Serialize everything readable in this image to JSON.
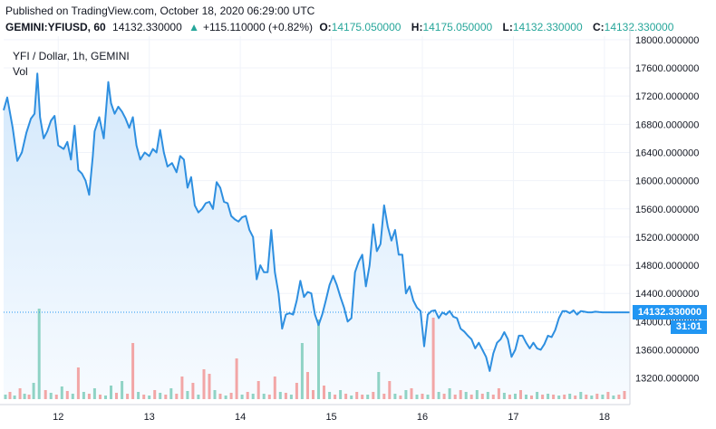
{
  "published": "Published on TradingView.com, October 18, 2020 06:29:00 UTC",
  "header": {
    "symbol": "GEMINI:YFIUSD, 60",
    "last": "14132.330000",
    "up_arrow": "▲",
    "change": "+115.110000 (+0.82%)",
    "o_label": "O:",
    "o_value": "14175.050000",
    "h_label": "H:",
    "h_value": "14175.050000",
    "l_label": "L:",
    "l_value": "14132.330000",
    "c_label": "C:",
    "c_value": "14132.330000"
  },
  "legend": {
    "title": "YFI / Dollar, 1h, GEMINI",
    "volume": "Vol"
  },
  "last_price_tag": "14132.330000",
  "countdown_tag": "31:01",
  "colors": {
    "line": "#2e8fe0",
    "area_top": "#d3e8fb",
    "area_bottom": "#f7fbff",
    "vol_up": "#8fd3c5",
    "vol_down": "#f2a6a6",
    "accent": "#2196f3",
    "grid": "#f0f3fa",
    "axis_text": "#131722"
  },
  "chart_data": {
    "type": "area",
    "title": "YFI / Dollar, 1h, GEMINI",
    "xlabel": "",
    "ylabel": "",
    "ylim": [
      12900,
      18050
    ],
    "grid": true,
    "y_ticks": [
      "13200.000000",
      "13600.000000",
      "14000.000000",
      "14400.000000",
      "14800.000000",
      "15200.000000",
      "15600.000000",
      "16000.000000",
      "16400.000000",
      "16800.000000",
      "17200.000000",
      "17600.000000",
      "18000.000000"
    ],
    "y_tick_values": [
      13200,
      13600,
      14000,
      14400,
      14800,
      15200,
      15600,
      16000,
      16400,
      16800,
      17200,
      17600,
      18000
    ],
    "x_ticks": [
      "12",
      "13",
      "14",
      "15",
      "16",
      "17",
      "18"
    ],
    "x_tick_positions": [
      12,
      13,
      14,
      15,
      16,
      17,
      18
    ],
    "x_range": [
      11.4,
      18.28
    ],
    "last_value": 14132.33,
    "series": [
      {
        "x": [
          11.4,
          11.44,
          11.5,
          11.55,
          11.6,
          11.65,
          11.7,
          11.74,
          11.77,
          11.8,
          11.84,
          11.88,
          11.92,
          11.96,
          12.0,
          12.06,
          12.1,
          12.14,
          12.18,
          12.22,
          12.26,
          12.3,
          12.34,
          12.38,
          12.4,
          12.45,
          12.5,
          12.55,
          12.58,
          12.62,
          12.66,
          12.7,
          12.74,
          12.78,
          12.82,
          12.86,
          12.9,
          12.95,
          13.0,
          13.04,
          13.08,
          13.12,
          13.16,
          13.2,
          13.25,
          13.3,
          13.34,
          13.38,
          13.42,
          13.46,
          13.5,
          13.54,
          13.58,
          13.62,
          13.66,
          13.7,
          13.74,
          13.78,
          13.82,
          13.86,
          13.9,
          13.94,
          13.98,
          14.02,
          14.06,
          14.1,
          14.14,
          14.18,
          14.22,
          14.26,
          14.3,
          14.34,
          14.38,
          14.42,
          14.46,
          14.5,
          14.54,
          14.58,
          14.62,
          14.66,
          14.7,
          14.74,
          14.78,
          14.82,
          14.86,
          14.9,
          14.94,
          14.98,
          15.02,
          15.06,
          15.1,
          15.14,
          15.18,
          15.22,
          15.26,
          15.3,
          15.34,
          15.38,
          15.42,
          15.46,
          15.5,
          15.54,
          15.58,
          15.62,
          15.66,
          15.7,
          15.74,
          15.78,
          15.82,
          15.86,
          15.9,
          15.94,
          15.98,
          16.02,
          16.06,
          16.1,
          16.14,
          16.18,
          16.22,
          16.26,
          16.3,
          16.34,
          16.38,
          16.42,
          16.46,
          16.5,
          16.54,
          16.58,
          16.62,
          16.66,
          16.7,
          16.74,
          16.78,
          16.82,
          16.86,
          16.9,
          16.94,
          16.98,
          17.02,
          17.06,
          17.1,
          17.14,
          17.18,
          17.22,
          17.26,
          17.3,
          17.34,
          17.38,
          17.42,
          17.46,
          17.5,
          17.54,
          17.58,
          17.62,
          17.66,
          17.7,
          17.74,
          17.78,
          17.82,
          17.86,
          17.9,
          17.94,
          17.98,
          18.02,
          18.06,
          18.1,
          18.14,
          18.18,
          18.22,
          18.26,
          18.28
        ],
        "y": [
          17000,
          17180,
          16750,
          16280,
          16400,
          16680,
          16880,
          16950,
          17520,
          16900,
          16600,
          16700,
          16850,
          16920,
          16500,
          16450,
          16550,
          16300,
          16780,
          16150,
          16100,
          16000,
          15800,
          16350,
          16700,
          16900,
          16600,
          17400,
          17100,
          16950,
          17050,
          16980,
          16880,
          16750,
          16900,
          16500,
          16300,
          16400,
          16350,
          16450,
          16400,
          16720,
          16400,
          16200,
          16250,
          16120,
          16350,
          16300,
          15900,
          16050,
          15650,
          15550,
          15600,
          15680,
          15700,
          15600,
          15980,
          15900,
          15700,
          15680,
          15500,
          15450,
          15420,
          15480,
          15500,
          15300,
          15200,
          14600,
          14800,
          14700,
          14700,
          15300,
          14700,
          14400,
          13900,
          14100,
          14120,
          14100,
          14300,
          14580,
          14350,
          14420,
          14400,
          14100,
          13950,
          14100,
          14300,
          14520,
          14650,
          14520,
          14350,
          14200,
          14000,
          14050,
          14700,
          14850,
          14950,
          14500,
          14800,
          15380,
          15000,
          15100,
          15650,
          15350,
          15150,
          15300,
          14950,
          14950,
          14400,
          14500,
          14300,
          14200,
          14150,
          13650,
          14100,
          14150,
          14160,
          14050,
          14130,
          14100,
          14150,
          14070,
          14050,
          13900,
          13860,
          13800,
          13750,
          13620,
          13700,
          13600,
          13500,
          13300,
          13550,
          13700,
          13750,
          13850,
          13750,
          13500,
          13600,
          13800,
          13800,
          13700,
          13620,
          13700,
          13620,
          13600,
          13680,
          13800,
          13780,
          13880,
          14050,
          14150,
          14150,
          14120,
          14160,
          14100,
          14150,
          14140,
          14132,
          14132,
          14140,
          14135,
          14132,
          14132,
          14132,
          14132,
          14132,
          14132,
          14132,
          14132,
          14132
        ]
      }
    ],
    "volume_series": {
      "name": "Vol",
      "x": [
        11.42,
        11.47,
        11.52,
        11.58,
        11.63,
        11.68,
        11.73,
        11.79,
        11.86,
        11.92,
        11.98,
        12.04,
        12.1,
        12.16,
        12.22,
        12.28,
        12.34,
        12.4,
        12.46,
        12.52,
        12.58,
        12.64,
        12.7,
        12.76,
        12.82,
        12.88,
        12.94,
        13.0,
        13.06,
        13.12,
        13.18,
        13.24,
        13.3,
        13.36,
        13.42,
        13.48,
        13.54,
        13.6,
        13.66,
        13.72,
        13.78,
        13.84,
        13.9,
        13.96,
        14.02,
        14.08,
        14.14,
        14.2,
        14.26,
        14.32,
        14.38,
        14.44,
        14.5,
        14.56,
        14.62,
        14.68,
        14.74,
        14.8,
        14.86,
        14.92,
        14.98,
        15.04,
        15.1,
        15.16,
        15.22,
        15.28,
        15.34,
        15.4,
        15.46,
        15.52,
        15.58,
        15.64,
        15.7,
        15.76,
        15.82,
        15.88,
        15.94,
        16.0,
        16.06,
        16.12,
        16.18,
        16.24,
        16.3,
        16.36,
        16.42,
        16.48,
        16.54,
        16.6,
        16.66,
        16.72,
        16.78,
        16.84,
        16.9,
        16.96,
        17.02,
        17.08,
        17.14,
        17.2,
        17.26,
        17.32,
        17.38,
        17.44,
        17.5,
        17.56,
        17.62,
        17.68,
        17.74,
        17.8,
        17.86,
        17.92,
        17.98,
        18.04,
        18.1,
        18.16,
        18.22
      ],
      "values": [
        0.05,
        0.08,
        0.04,
        0.12,
        0.06,
        0.05,
        0.18,
        1.0,
        0.1,
        0.07,
        0.05,
        0.14,
        0.09,
        0.06,
        0.35,
        0.08,
        0.06,
        0.12,
        0.05,
        0.04,
        0.15,
        0.07,
        0.2,
        0.06,
        0.62,
        0.08,
        0.05,
        0.04,
        0.1,
        0.07,
        0.05,
        0.12,
        0.06,
        0.25,
        0.09,
        0.18,
        0.05,
        0.33,
        0.28,
        0.1,
        0.06,
        0.04,
        0.07,
        0.45,
        0.05,
        0.08,
        0.06,
        0.2,
        0.06,
        0.05,
        0.25,
        0.08,
        0.07,
        0.05,
        0.18,
        0.62,
        0.3,
        0.1,
        0.88,
        0.15,
        0.08,
        0.05,
        0.1,
        0.06,
        0.04,
        0.08,
        0.05,
        0.05,
        0.08,
        0.3,
        0.06,
        0.2,
        0.06,
        0.04,
        0.1,
        0.12,
        0.05,
        0.06,
        0.05,
        0.9,
        0.08,
        0.06,
        0.12,
        0.05,
        0.1,
        0.08,
        0.05,
        0.1,
        0.06,
        0.08,
        0.05,
        0.12,
        0.07,
        0.05,
        0.06,
        0.1,
        0.05,
        0.04,
        0.08,
        0.05,
        0.06,
        0.05,
        0.04,
        0.05,
        0.06,
        0.04,
        0.08,
        0.05,
        0.04,
        0.06,
        0.05,
        0.08,
        0.04,
        0.05,
        0.09
      ],
      "up": [
        true,
        false,
        true,
        false,
        true,
        false,
        true,
        true,
        false,
        true,
        false,
        true,
        false,
        true,
        false,
        true,
        false,
        true,
        false,
        true,
        true,
        false,
        true,
        false,
        false,
        true,
        false,
        true,
        false,
        true,
        false,
        true,
        false,
        false,
        true,
        false,
        true,
        false,
        false,
        true,
        false,
        true,
        false,
        false,
        true,
        false,
        true,
        false,
        true,
        false,
        false,
        true,
        false,
        true,
        false,
        true,
        false,
        false,
        true,
        false,
        true,
        false,
        true,
        false,
        true,
        false,
        false,
        true,
        false,
        true,
        false,
        false,
        true,
        false,
        true,
        false,
        true,
        false,
        true,
        false,
        true,
        false,
        true,
        false,
        false,
        true,
        false,
        true,
        false,
        true,
        false,
        false,
        true,
        false,
        true,
        false,
        true,
        false,
        true,
        false,
        true,
        false,
        true,
        false,
        true,
        false,
        true,
        false,
        true,
        false,
        true,
        false,
        true,
        false,
        false
      ]
    }
  }
}
